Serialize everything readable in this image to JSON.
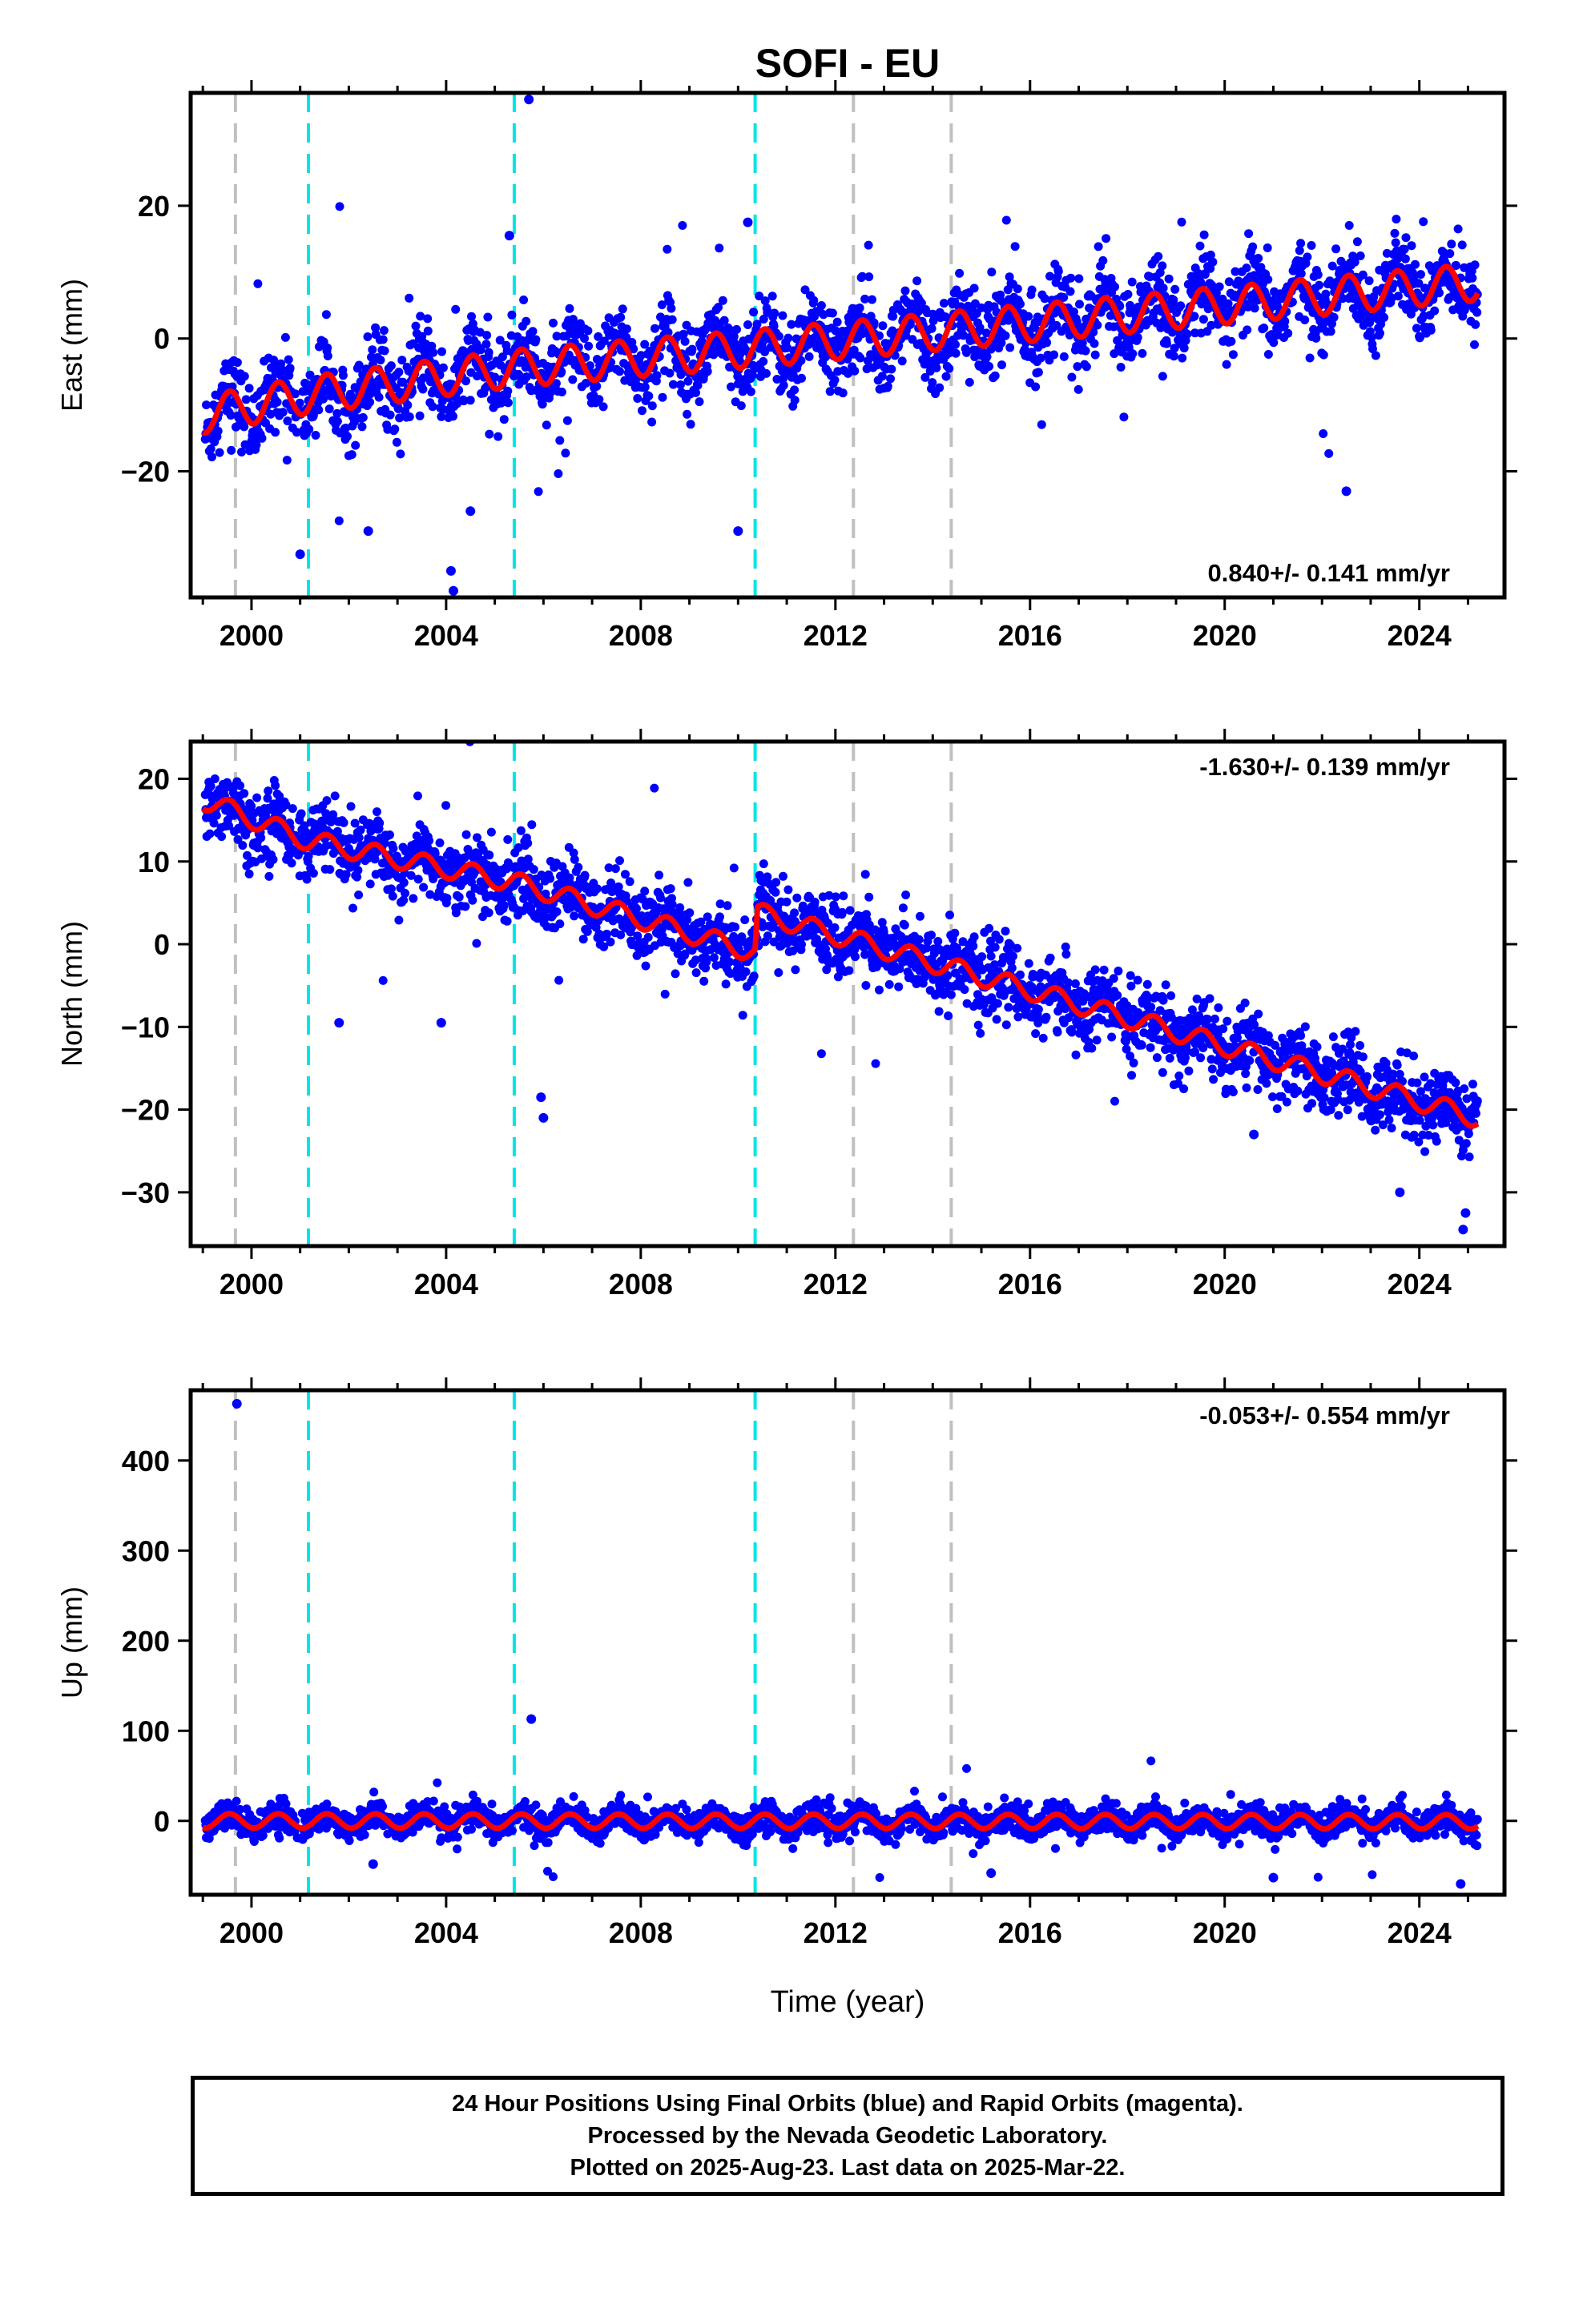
{
  "title": "SOFI - EU",
  "xlabel": "Time (year)",
  "footer": {
    "line1": "24 Hour Positions Using Final Orbits (blue) and Rapid Orbits (magenta).",
    "line2": "Processed by the Nevada Geodetic Laboratory.",
    "line3": "Plotted on 2025-Aug-23. Last data on 2025-Mar-22."
  },
  "colors": {
    "points": "#0000ff",
    "model": "#ff0000",
    "step_gray": "#c0c0c0",
    "step_cyan": "#00e5e5"
  },
  "chart_data": [
    {
      "type": "scatter",
      "name": "east",
      "ylabel": "East (mm)",
      "xlim": [
        1998.75,
        2025.75
      ],
      "ylim": [
        -39,
        37
      ],
      "xticks": [
        2000,
        2004,
        2008,
        2012,
        2016,
        2020,
        2024
      ],
      "yticks": [
        -20,
        0,
        20
      ],
      "rate_label": "0.840+/- 0.141 mm/yr",
      "rate_position": "bottom-right",
      "model": {
        "trend_points": [
          [
            1999.0,
            -11.5
          ],
          [
            2001.17,
            -8.5
          ],
          [
            2005.4,
            -4.5
          ],
          [
            2010.35,
            -1.5
          ],
          [
            2025.2,
            8.5
          ]
        ],
        "annual_amplitude": 2.8,
        "annual_phase_peak": 0.55
      },
      "outliers": [
        [
          2005.7,
          36
        ],
        [
          2004.1,
          -35
        ],
        [
          2004.15,
          -38
        ],
        [
          2010.2,
          17.5
        ],
        [
          2005.3,
          15.5
        ],
        [
          2022.5,
          -23
        ],
        [
          2004.5,
          -26
        ],
        [
          2001.0,
          -32.5
        ],
        [
          2002.4,
          -29
        ],
        [
          2010.0,
          -29
        ]
      ]
    },
    {
      "type": "scatter",
      "name": "north",
      "ylabel": "North (mm)",
      "xlim": [
        1998.75,
        2025.75
      ],
      "ylim": [
        -36.5,
        24.5
      ],
      "xticks": [
        2000,
        2004,
        2008,
        2012,
        2016,
        2020,
        2024
      ],
      "yticks": [
        -30,
        -20,
        -10,
        0,
        10,
        20
      ],
      "rate_label": "-1.630+/- 0.139 mm/yr",
      "rate_position": "top-right",
      "model": {
        "trend_points": [
          [
            1999.0,
            17.5
          ],
          [
            2001.17,
            12.5
          ],
          [
            2005.4,
            7.5
          ],
          [
            2010.35,
            -1.0
          ],
          [
            2010.4,
            3.8
          ],
          [
            2025.2,
            -21.0
          ]
        ],
        "annual_amplitude": 1.2,
        "annual_phase_peak": 0.55
      },
      "outliers": [
        [
          2005.95,
          -18.5
        ],
        [
          2006.0,
          -21
        ],
        [
          2001.8,
          -9.5
        ],
        [
          2003.9,
          -9.5
        ],
        [
          2024.9,
          -34.5
        ],
        [
          2024.95,
          -32.5
        ],
        [
          2023.6,
          -30
        ],
        [
          2020.6,
          -23
        ]
      ]
    },
    {
      "type": "scatter",
      "name": "up",
      "ylabel": "Up (mm)",
      "xlim": [
        1998.75,
        2025.75
      ],
      "ylim": [
        -82,
        478
      ],
      "xticks": [
        2000,
        2004,
        2008,
        2012,
        2016,
        2020,
        2024
      ],
      "yticks": [
        0,
        100,
        200,
        300,
        400
      ],
      "rate_label": "-0.053+/- 0.554 mm/yr",
      "rate_position": "top-right",
      "model": {
        "trend_points": [
          [
            1999.0,
            0.0
          ],
          [
            2025.2,
            -1.0
          ]
        ],
        "annual_amplitude": 8.0,
        "annual_phase_peak": 0.55
      },
      "outliers": [
        [
          1999.7,
          463
        ],
        [
          2005.75,
          113
        ],
        [
          2021.0,
          -63
        ],
        [
          2024.85,
          -70
        ],
        [
          2015.2,
          -58
        ],
        [
          2002.5,
          -48
        ]
      ]
    }
  ],
  "steps": {
    "gray": [
      1999.67,
      2012.37,
      2014.38
    ],
    "cyan": [
      2001.17,
      2005.4,
      2010.35
    ]
  }
}
